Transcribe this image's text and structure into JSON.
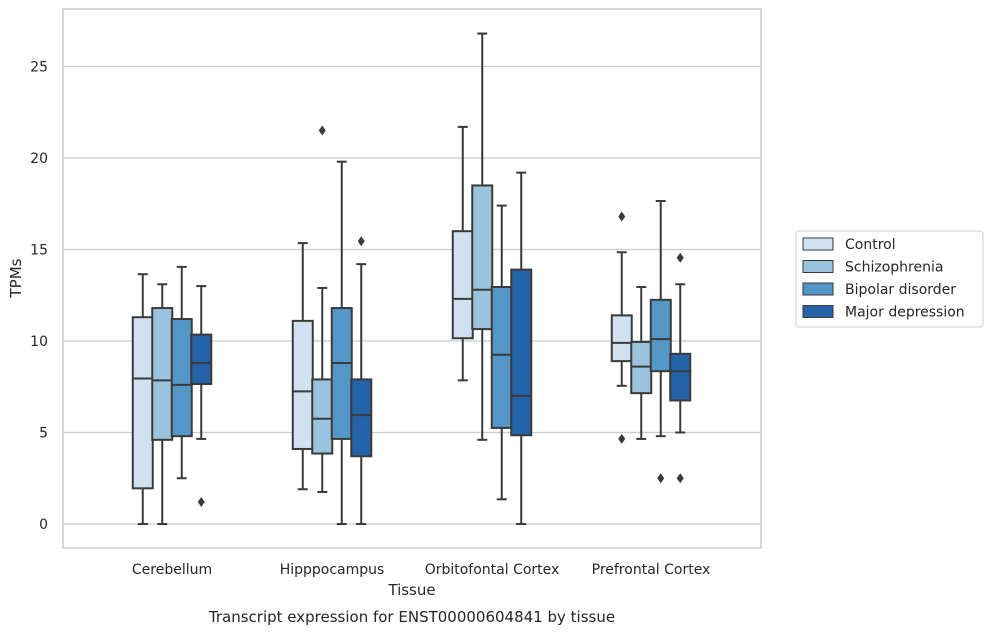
{
  "caption": "Transcript expression for ENST00000604841 by tissue",
  "chart_data": {
    "type": "boxplot",
    "xlabel": "Tissue",
    "ylabel": "TPMs",
    "ylim": [
      -1.3,
      28.2
    ],
    "yticks": [
      0,
      5,
      10,
      15,
      20,
      25
    ],
    "grid": "horizontal",
    "legend_position": "right",
    "categories": [
      "Cerebellum",
      "Hipppocampus",
      "Orbitofontal Cortex",
      "Prefrontal Cortex"
    ],
    "series": [
      {
        "name": "Control",
        "color": "#d0e1f2",
        "boxes": [
          {
            "whislo": 0,
            "q1": 1.95,
            "med": 7.95,
            "q3": 11.3,
            "whishi": 13.65,
            "fliers": []
          },
          {
            "whislo": 1.9,
            "q1": 4.1,
            "med": 7.25,
            "q3": 11.1,
            "whishi": 15.35,
            "fliers": []
          },
          {
            "whislo": 7.85,
            "q1": 10.15,
            "med": 12.3,
            "q3": 16.0,
            "whishi": 21.7,
            "fliers": []
          },
          {
            "whislo": 7.55,
            "q1": 8.9,
            "med": 9.9,
            "q3": 11.4,
            "whishi": 14.85,
            "fliers": [
              16.8,
              4.65
            ]
          }
        ]
      },
      {
        "name": "Schizophrenia",
        "color": "#9ac3de",
        "boxes": [
          {
            "whislo": 0,
            "q1": 4.6,
            "med": 7.85,
            "q3": 11.8,
            "whishi": 13.1,
            "fliers": []
          },
          {
            "whislo": 1.75,
            "q1": 3.85,
            "med": 5.75,
            "q3": 7.9,
            "whishi": 12.9,
            "fliers": [
              21.5
            ]
          },
          {
            "whislo": 4.6,
            "q1": 10.65,
            "med": 12.8,
            "q3": 18.5,
            "whishi": 26.8,
            "fliers": []
          },
          {
            "whislo": 4.65,
            "q1": 7.15,
            "med": 8.6,
            "q3": 9.95,
            "whishi": 12.95,
            "fliers": []
          }
        ]
      },
      {
        "name": "Bipolar disorder",
        "color": "#5497c7",
        "boxes": [
          {
            "whislo": 2.5,
            "q1": 4.8,
            "med": 7.6,
            "q3": 11.2,
            "whishi": 14.05,
            "fliers": []
          },
          {
            "whislo": 0,
            "q1": 4.65,
            "med": 8.8,
            "q3": 11.8,
            "whishi": 19.8,
            "fliers": []
          },
          {
            "whislo": 1.35,
            "q1": 5.25,
            "med": 9.25,
            "q3": 12.95,
            "whishi": 17.4,
            "fliers": []
          },
          {
            "whislo": 4.8,
            "q1": 8.35,
            "med": 10.1,
            "q3": 12.25,
            "whishi": 17.65,
            "fliers": [
              2.5
            ]
          }
        ]
      },
      {
        "name": "Major depression",
        "color": "#2563a8",
        "boxes": [
          {
            "whislo": 4.65,
            "q1": 7.65,
            "med": 8.8,
            "q3": 10.35,
            "whishi": 13.0,
            "fliers": [
              1.2
            ]
          },
          {
            "whislo": 0,
            "q1": 3.7,
            "med": 5.95,
            "q3": 7.9,
            "whishi": 14.2,
            "fliers": [
              15.45
            ]
          },
          {
            "whislo": 0,
            "q1": 4.85,
            "med": 7.0,
            "q3": 13.9,
            "whishi": 19.2,
            "fliers": []
          },
          {
            "whislo": 5.0,
            "q1": 6.75,
            "med": 8.35,
            "q3": 9.3,
            "whishi": 13.1,
            "fliers": [
              14.55,
              2.5
            ]
          }
        ]
      }
    ]
  }
}
